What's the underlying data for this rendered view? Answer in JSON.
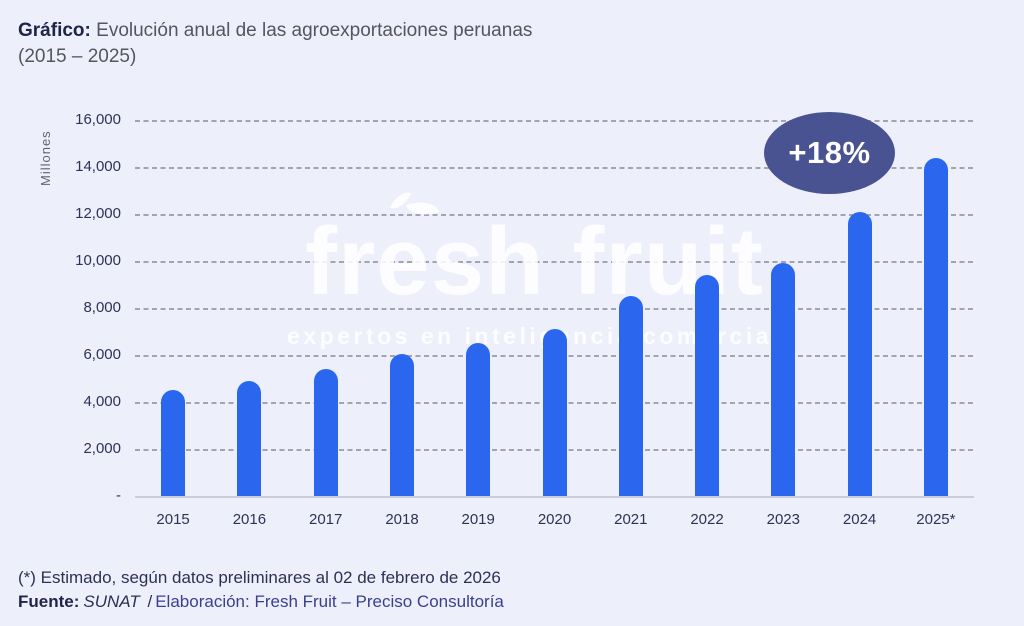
{
  "title": {
    "prefix": "Gráfico:",
    "text": "Evolución anual de las agroexportaciones peruanas",
    "range": "(2015 – 2025)"
  },
  "chart_data": {
    "type": "bar",
    "title": "Evolución anual de las agroexportaciones peruanas (2015 – 2025)",
    "ylabel": "Millones",
    "xlabel": "",
    "categories": [
      "2015",
      "2016",
      "2017",
      "2018",
      "2019",
      "2020",
      "2021",
      "2022",
      "2023",
      "2024",
      "2025*"
    ],
    "values": [
      4500,
      4900,
      5400,
      6050,
      6500,
      7100,
      8500,
      9400,
      9900,
      12100,
      14400
    ],
    "ylim": [
      0,
      16000
    ],
    "y_tick_labels": [
      "16,000",
      "14,000",
      "12,000",
      "10,000",
      "8,000",
      "6,000",
      "4,000",
      "2,000",
      "-"
    ],
    "grid": "horizontal-dashed",
    "legend": "none",
    "bar_color": "#2A67EE",
    "annotation": {
      "text": "+18%",
      "target": "2025*",
      "bg_color": "#4A5392",
      "text_color": "#FFFFFF"
    }
  },
  "watermark": {
    "brand": "fresh fruit",
    "tagline": "expertos en inteligencia comercial"
  },
  "footer": {
    "note": "(*) Estimado, según datos preliminares al 02 de febrero de 2026",
    "source_label": "Fuente:",
    "source_name": "SUNAT",
    "separator": "/",
    "elaboration": "Elaboración: Fresh Fruit – Preciso Consultoría"
  }
}
